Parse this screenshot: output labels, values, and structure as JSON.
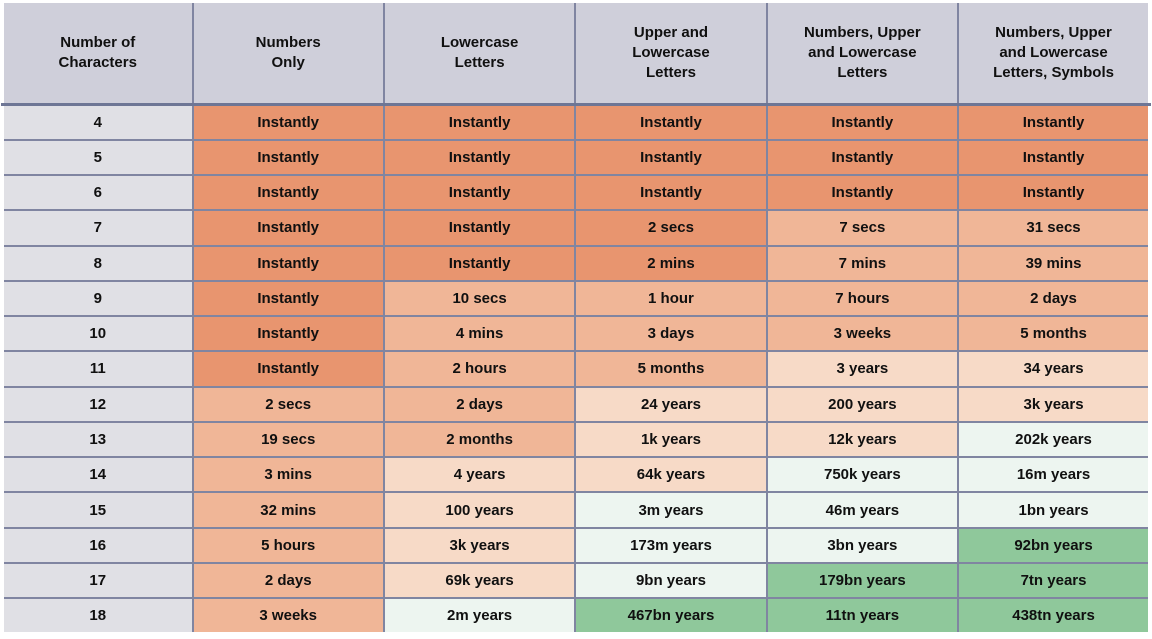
{
  "colors": {
    "D": "#E8956F",
    "M": "#F0B697",
    "L": "#F7DAC7",
    "W": "#EDF5F0",
    "G": "#8FC89B",
    "header_bg": "#CFCFDA",
    "row_header_bg": "#E0E0E5",
    "grid_border": "#8085A1",
    "header_divider": "#6E7695"
  },
  "chart_data": {
    "type": "table",
    "columns": [
      "Number of\nCharacters",
      "Numbers\nOnly",
      "Lowercase\nLetters",
      "Upper and\nLowercase\nLetters",
      "Numbers, Upper\nand Lowercase\nLetters",
      "Numbers, Upper\nand Lowercase\nLetters, Symbols"
    ],
    "rows": [
      {
        "chars": "4",
        "cells": [
          {
            "text": "Instantly",
            "shade": "D"
          },
          {
            "text": "Instantly",
            "shade": "D"
          },
          {
            "text": "Instantly",
            "shade": "D"
          },
          {
            "text": "Instantly",
            "shade": "D"
          },
          {
            "text": "Instantly",
            "shade": "D"
          }
        ]
      },
      {
        "chars": "5",
        "cells": [
          {
            "text": "Instantly",
            "shade": "D"
          },
          {
            "text": "Instantly",
            "shade": "D"
          },
          {
            "text": "Instantly",
            "shade": "D"
          },
          {
            "text": "Instantly",
            "shade": "D"
          },
          {
            "text": "Instantly",
            "shade": "D"
          }
        ]
      },
      {
        "chars": "6",
        "cells": [
          {
            "text": "Instantly",
            "shade": "D"
          },
          {
            "text": "Instantly",
            "shade": "D"
          },
          {
            "text": "Instantly",
            "shade": "D"
          },
          {
            "text": "Instantly",
            "shade": "D"
          },
          {
            "text": "Instantly",
            "shade": "D"
          }
        ]
      },
      {
        "chars": "7",
        "cells": [
          {
            "text": "Instantly",
            "shade": "D"
          },
          {
            "text": "Instantly",
            "shade": "D"
          },
          {
            "text": "2 secs",
            "shade": "D"
          },
          {
            "text": "7 secs",
            "shade": "M"
          },
          {
            "text": "31 secs",
            "shade": "M"
          }
        ]
      },
      {
        "chars": "8",
        "cells": [
          {
            "text": "Instantly",
            "shade": "D"
          },
          {
            "text": "Instantly",
            "shade": "D"
          },
          {
            "text": "2 mins",
            "shade": "D"
          },
          {
            "text": "7 mins",
            "shade": "M"
          },
          {
            "text": "39 mins",
            "shade": "M"
          }
        ]
      },
      {
        "chars": "9",
        "cells": [
          {
            "text": "Instantly",
            "shade": "D"
          },
          {
            "text": "10 secs",
            "shade": "M"
          },
          {
            "text": "1 hour",
            "shade": "M"
          },
          {
            "text": "7 hours",
            "shade": "M"
          },
          {
            "text": "2 days",
            "shade": "M"
          }
        ]
      },
      {
        "chars": "10",
        "cells": [
          {
            "text": "Instantly",
            "shade": "D"
          },
          {
            "text": "4 mins",
            "shade": "M"
          },
          {
            "text": "3 days",
            "shade": "M"
          },
          {
            "text": "3 weeks",
            "shade": "M"
          },
          {
            "text": "5 months",
            "shade": "M"
          }
        ]
      },
      {
        "chars": "11",
        "cells": [
          {
            "text": "Instantly",
            "shade": "D"
          },
          {
            "text": "2 hours",
            "shade": "M"
          },
          {
            "text": "5 months",
            "shade": "M"
          },
          {
            "text": "3 years",
            "shade": "L"
          },
          {
            "text": "34 years",
            "shade": "L"
          }
        ]
      },
      {
        "chars": "12",
        "cells": [
          {
            "text": "2 secs",
            "shade": "M"
          },
          {
            "text": "2 days",
            "shade": "M"
          },
          {
            "text": "24 years",
            "shade": "L"
          },
          {
            "text": "200 years",
            "shade": "L"
          },
          {
            "text": "3k years",
            "shade": "L"
          }
        ]
      },
      {
        "chars": "13",
        "cells": [
          {
            "text": "19 secs",
            "shade": "M"
          },
          {
            "text": "2 months",
            "shade": "M"
          },
          {
            "text": "1k years",
            "shade": "L"
          },
          {
            "text": "12k years",
            "shade": "L"
          },
          {
            "text": "202k years",
            "shade": "W"
          }
        ]
      },
      {
        "chars": "14",
        "cells": [
          {
            "text": "3 mins",
            "shade": "M"
          },
          {
            "text": "4 years",
            "shade": "L"
          },
          {
            "text": "64k years",
            "shade": "L"
          },
          {
            "text": "750k years",
            "shade": "W"
          },
          {
            "text": "16m years",
            "shade": "W"
          }
        ]
      },
      {
        "chars": "15",
        "cells": [
          {
            "text": "32 mins",
            "shade": "M"
          },
          {
            "text": "100 years",
            "shade": "L"
          },
          {
            "text": "3m years",
            "shade": "W"
          },
          {
            "text": "46m years",
            "shade": "W"
          },
          {
            "text": "1bn years",
            "shade": "W"
          }
        ]
      },
      {
        "chars": "16",
        "cells": [
          {
            "text": "5 hours",
            "shade": "M"
          },
          {
            "text": "3k years",
            "shade": "L"
          },
          {
            "text": "173m years",
            "shade": "W"
          },
          {
            "text": "3bn years",
            "shade": "W"
          },
          {
            "text": "92bn years",
            "shade": "G"
          }
        ]
      },
      {
        "chars": "17",
        "cells": [
          {
            "text": "2 days",
            "shade": "M"
          },
          {
            "text": "69k years",
            "shade": "L"
          },
          {
            "text": "9bn years",
            "shade": "W"
          },
          {
            "text": "179bn years",
            "shade": "G"
          },
          {
            "text": "7tn years",
            "shade": "G"
          }
        ]
      },
      {
        "chars": "18",
        "cells": [
          {
            "text": "3 weeks",
            "shade": "M"
          },
          {
            "text": "2m years",
            "shade": "W"
          },
          {
            "text": "467bn years",
            "shade": "G"
          },
          {
            "text": "11tn years",
            "shade": "G"
          },
          {
            "text": "438tn years",
            "shade": "G"
          }
        ]
      }
    ]
  }
}
